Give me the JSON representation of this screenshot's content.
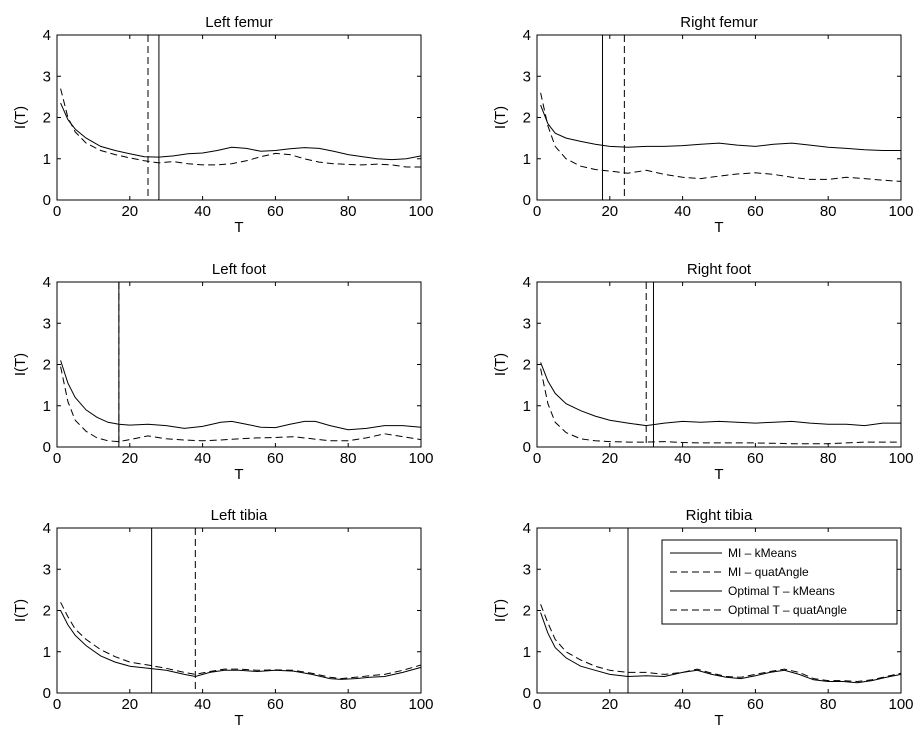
{
  "chart_data": [
    {
      "type": "line",
      "title": "Left femur",
      "xlabel": "T",
      "ylabel": "I(T)",
      "xlim": [
        0,
        100
      ],
      "ylim": [
        0,
        4
      ],
      "xticks": [
        0,
        20,
        40,
        60,
        80,
        100
      ],
      "yticks": [
        0,
        1,
        2,
        3,
        4
      ],
      "grid": false,
      "series": [
        {
          "style": "solid",
          "x": [
            1,
            3,
            5,
            8,
            12,
            16,
            20,
            24,
            28,
            32,
            36,
            40,
            44,
            48,
            52,
            56,
            60,
            64,
            68,
            72,
            76,
            80,
            84,
            88,
            92,
            96,
            100
          ],
          "y": [
            2.35,
            1.95,
            1.72,
            1.5,
            1.3,
            1.2,
            1.12,
            1.05,
            1.04,
            1.07,
            1.12,
            1.14,
            1.2,
            1.28,
            1.25,
            1.18,
            1.2,
            1.24,
            1.27,
            1.25,
            1.18,
            1.1,
            1.05,
            1.0,
            0.98,
            1.0,
            1.07
          ]
        },
        {
          "style": "dashed",
          "x": [
            1,
            3,
            5,
            8,
            12,
            16,
            20,
            24,
            28,
            32,
            36,
            40,
            44,
            48,
            52,
            56,
            60,
            64,
            68,
            72,
            76,
            80,
            84,
            88,
            92,
            96,
            100
          ],
          "y": [
            2.7,
            2.0,
            1.65,
            1.38,
            1.2,
            1.1,
            1.02,
            0.95,
            0.9,
            0.93,
            0.88,
            0.85,
            0.85,
            0.88,
            0.95,
            1.05,
            1.13,
            1.1,
            1.0,
            0.92,
            0.88,
            0.86,
            0.85,
            0.87,
            0.85,
            0.8,
            0.8
          ]
        }
      ],
      "optimal_T": {
        "kMeans": 28,
        "quatAngle": 25
      }
    },
    {
      "type": "line",
      "title": "Right femur",
      "xlabel": "T",
      "ylabel": "I(T)",
      "xlim": [
        0,
        100
      ],
      "ylim": [
        0,
        4
      ],
      "xticks": [
        0,
        20,
        40,
        60,
        80,
        100
      ],
      "yticks": [
        0,
        1,
        2,
        3,
        4
      ],
      "grid": false,
      "series": [
        {
          "style": "solid",
          "x": [
            1,
            3,
            5,
            8,
            12,
            16,
            20,
            25,
            30,
            35,
            40,
            45,
            50,
            55,
            60,
            65,
            70,
            75,
            80,
            85,
            90,
            95,
            100
          ],
          "y": [
            2.3,
            1.85,
            1.62,
            1.5,
            1.42,
            1.35,
            1.3,
            1.28,
            1.3,
            1.3,
            1.32,
            1.35,
            1.38,
            1.33,
            1.3,
            1.35,
            1.38,
            1.33,
            1.28,
            1.25,
            1.22,
            1.2,
            1.2
          ]
        },
        {
          "style": "dashed",
          "x": [
            1,
            3,
            5,
            8,
            12,
            16,
            20,
            25,
            30,
            35,
            40,
            45,
            50,
            55,
            60,
            65,
            70,
            75,
            80,
            85,
            90,
            95,
            100
          ],
          "y": [
            2.6,
            1.8,
            1.3,
            1.0,
            0.82,
            0.74,
            0.7,
            0.65,
            0.72,
            0.62,
            0.55,
            0.52,
            0.58,
            0.63,
            0.66,
            0.62,
            0.55,
            0.5,
            0.5,
            0.55,
            0.52,
            0.48,
            0.45
          ]
        }
      ],
      "optimal_T": {
        "kMeans": 18,
        "quatAngle": 24
      }
    },
    {
      "type": "line",
      "title": "Left foot",
      "xlabel": "T",
      "ylabel": "I(T)",
      "xlim": [
        0,
        100
      ],
      "ylim": [
        0,
        4
      ],
      "xticks": [
        0,
        20,
        40,
        60,
        80,
        100
      ],
      "yticks": [
        0,
        1,
        2,
        3,
        4
      ],
      "grid": false,
      "series": [
        {
          "style": "solid",
          "x": [
            1,
            3,
            5,
            8,
            11,
            14,
            17,
            20,
            25,
            30,
            35,
            40,
            45,
            48,
            52,
            56,
            60,
            64,
            68,
            71,
            75,
            80,
            85,
            90,
            95,
            100
          ],
          "y": [
            2.1,
            1.55,
            1.2,
            0.9,
            0.72,
            0.6,
            0.55,
            0.53,
            0.55,
            0.52,
            0.45,
            0.5,
            0.6,
            0.62,
            0.55,
            0.48,
            0.47,
            0.55,
            0.62,
            0.62,
            0.52,
            0.42,
            0.45,
            0.52,
            0.52,
            0.48
          ]
        },
        {
          "style": "dashed",
          "x": [
            1,
            3,
            5,
            8,
            11,
            14,
            17,
            20,
            25,
            30,
            35,
            40,
            45,
            50,
            55,
            60,
            65,
            70,
            75,
            80,
            85,
            90,
            95,
            100
          ],
          "y": [
            1.95,
            1.1,
            0.65,
            0.38,
            0.22,
            0.15,
            0.13,
            0.18,
            0.27,
            0.2,
            0.17,
            0.15,
            0.17,
            0.2,
            0.22,
            0.23,
            0.25,
            0.2,
            0.15,
            0.15,
            0.22,
            0.32,
            0.25,
            0.18
          ]
        }
      ],
      "optimal_T": {
        "kMeans": 17,
        "quatAngle": 17
      }
    },
    {
      "type": "line",
      "title": "Right foot",
      "xlabel": "T",
      "ylabel": "I(T)",
      "xlim": [
        0,
        100
      ],
      "ylim": [
        0,
        4
      ],
      "xticks": [
        0,
        20,
        40,
        60,
        80,
        100
      ],
      "yticks": [
        0,
        1,
        2,
        3,
        4
      ],
      "grid": false,
      "series": [
        {
          "style": "solid",
          "x": [
            1,
            3,
            5,
            8,
            12,
            16,
            20,
            25,
            30,
            35,
            40,
            45,
            50,
            55,
            60,
            65,
            70,
            75,
            80,
            85,
            90,
            95,
            100
          ],
          "y": [
            2.05,
            1.6,
            1.3,
            1.05,
            0.88,
            0.75,
            0.65,
            0.58,
            0.52,
            0.58,
            0.62,
            0.6,
            0.62,
            0.6,
            0.58,
            0.6,
            0.62,
            0.58,
            0.55,
            0.55,
            0.52,
            0.58,
            0.58
          ]
        },
        {
          "style": "dashed",
          "x": [
            1,
            3,
            5,
            8,
            12,
            16,
            20,
            25,
            30,
            35,
            40,
            45,
            50,
            55,
            60,
            65,
            70,
            75,
            80,
            85,
            90,
            95,
            100
          ],
          "y": [
            1.9,
            1.05,
            0.6,
            0.35,
            0.2,
            0.15,
            0.13,
            0.12,
            0.12,
            0.13,
            0.11,
            0.1,
            0.1,
            0.1,
            0.1,
            0.09,
            0.08,
            0.08,
            0.08,
            0.1,
            0.12,
            0.12,
            0.12
          ]
        }
      ],
      "optimal_T": {
        "kMeans": 32,
        "quatAngle": 30
      }
    },
    {
      "type": "line",
      "title": "Left tibia",
      "xlabel": "T",
      "ylabel": "I(T)",
      "xlim": [
        0,
        100
      ],
      "ylim": [
        0,
        4
      ],
      "xticks": [
        0,
        20,
        40,
        60,
        80,
        100
      ],
      "yticks": [
        0,
        1,
        2,
        3,
        4
      ],
      "grid": false,
      "series": [
        {
          "style": "solid",
          "x": [
            1,
            3,
            5,
            8,
            12,
            16,
            20,
            25,
            30,
            35,
            38,
            42,
            46,
            50,
            55,
            60,
            65,
            70,
            75,
            78,
            82,
            86,
            90,
            95,
            100
          ],
          "y": [
            2.0,
            1.65,
            1.4,
            1.15,
            0.9,
            0.75,
            0.65,
            0.6,
            0.55,
            0.45,
            0.4,
            0.5,
            0.55,
            0.55,
            0.52,
            0.55,
            0.53,
            0.45,
            0.35,
            0.33,
            0.35,
            0.38,
            0.4,
            0.5,
            0.62
          ]
        },
        {
          "style": "dashed",
          "x": [
            1,
            3,
            5,
            8,
            12,
            16,
            20,
            25,
            30,
            35,
            38,
            42,
            46,
            50,
            55,
            60,
            65,
            70,
            75,
            78,
            82,
            86,
            90,
            95,
            100
          ],
          "y": [
            2.2,
            1.85,
            1.55,
            1.3,
            1.05,
            0.88,
            0.75,
            0.68,
            0.6,
            0.5,
            0.45,
            0.52,
            0.58,
            0.58,
            0.55,
            0.56,
            0.55,
            0.48,
            0.38,
            0.35,
            0.38,
            0.42,
            0.45,
            0.55,
            0.68
          ]
        }
      ],
      "optimal_T": {
        "kMeans": 26,
        "quatAngle": 38
      }
    },
    {
      "type": "line",
      "title": "Right tibia",
      "xlabel": "T",
      "ylabel": "I(T)",
      "xlim": [
        0,
        100
      ],
      "ylim": [
        0,
        4
      ],
      "xticks": [
        0,
        20,
        40,
        60,
        80,
        100
      ],
      "yticks": [
        0,
        1,
        2,
        3,
        4
      ],
      "grid": false,
      "series": [
        {
          "style": "solid",
          "x": [
            1,
            3,
            5,
            8,
            12,
            16,
            20,
            25,
            30,
            35,
            40,
            44,
            48,
            52,
            56,
            60,
            64,
            68,
            72,
            76,
            80,
            84,
            88,
            92,
            96,
            100
          ],
          "y": [
            1.95,
            1.45,
            1.1,
            0.85,
            0.65,
            0.55,
            0.45,
            0.4,
            0.42,
            0.4,
            0.5,
            0.55,
            0.45,
            0.38,
            0.35,
            0.42,
            0.5,
            0.55,
            0.45,
            0.32,
            0.28,
            0.28,
            0.25,
            0.3,
            0.38,
            0.45
          ]
        },
        {
          "style": "dashed",
          "x": [
            1,
            3,
            5,
            8,
            12,
            16,
            20,
            25,
            30,
            35,
            40,
            44,
            48,
            52,
            56,
            60,
            64,
            68,
            72,
            76,
            80,
            84,
            88,
            92,
            96,
            100
          ],
          "y": [
            2.15,
            1.7,
            1.3,
            1.0,
            0.8,
            0.65,
            0.55,
            0.5,
            0.5,
            0.45,
            0.5,
            0.58,
            0.48,
            0.4,
            0.38,
            0.45,
            0.52,
            0.58,
            0.5,
            0.35,
            0.3,
            0.3,
            0.28,
            0.32,
            0.4,
            0.48
          ]
        }
      ],
      "optimal_T": {
        "kMeans": 25,
        "quatAngle": 25
      }
    }
  ],
  "legend": {
    "location": "top-right of Right tibia panel",
    "entries": [
      {
        "label": "MI – kMeans",
        "style": "solid"
      },
      {
        "label": "MI – quatAngle",
        "style": "dashed"
      },
      {
        "label": "Optimal T – kMeans",
        "style": "solid"
      },
      {
        "label": "Optimal T – quatAngle",
        "style": "dashed"
      }
    ]
  },
  "colors": {
    "line": "#000000",
    "background": "#ffffff"
  }
}
